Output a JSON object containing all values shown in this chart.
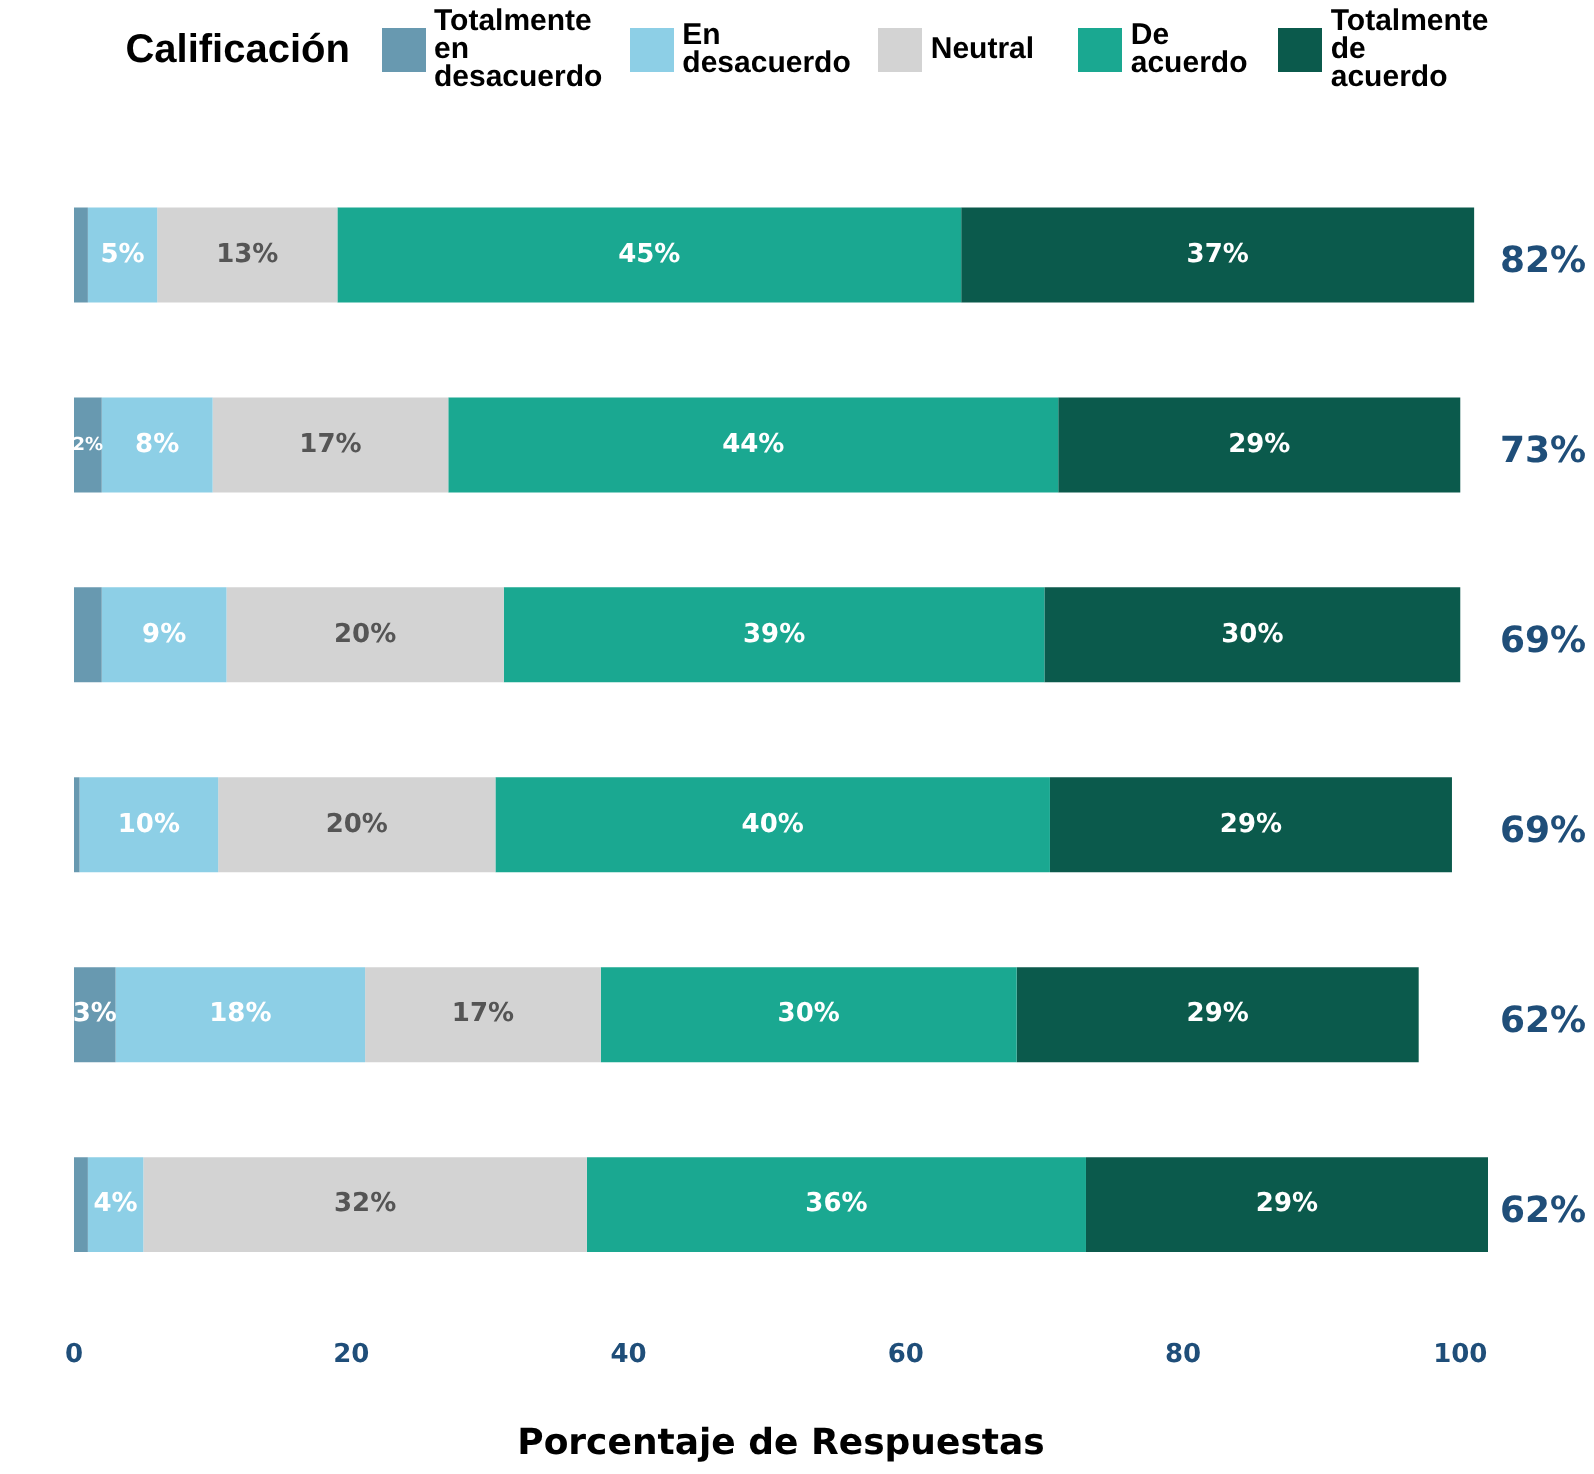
{
  "chart_data": {
    "type": "bar",
    "orientation": "horizontal",
    "stacked": true,
    "legend": "top",
    "legend_title": "Calificación",
    "xlabel": "Porcentaje de Respuestas",
    "categories": [
      null,
      null,
      null,
      null,
      null,
      null
    ],
    "xlim": [
      0,
      102
    ],
    "xticks": [
      0,
      20,
      40,
      60,
      80,
      100
    ],
    "grid": false,
    "series": [
      {
        "name": "Totalmente en desacuerdo",
        "color": "#6899b0",
        "values": [
          1,
          2,
          2,
          0.4,
          3,
          1
        ],
        "value_labels": [
          null,
          "2%",
          null,
          null,
          "3%",
          null
        ]
      },
      {
        "name": "En desacuerdo",
        "color": "#8dcfe6",
        "values": [
          5,
          8,
          9,
          10,
          18,
          4
        ],
        "value_labels": [
          "5%",
          "8%",
          "9%",
          "10%",
          "18%",
          "4%"
        ]
      },
      {
        "name": "Neutral",
        "color": "#d3d3d3",
        "values": [
          13,
          17,
          20,
          20,
          17,
          32
        ],
        "value_labels": [
          "13%",
          "17%",
          "20%",
          "20%",
          "17%",
          "32%"
        ]
      },
      {
        "name": "De acuerdo",
        "color": "#1aa891",
        "values": [
          45,
          44,
          39,
          40,
          30,
          36
        ],
        "value_labels": [
          "45%",
          "44%",
          "39%",
          "40%",
          "30%",
          "36%"
        ]
      },
      {
        "name": "Totalmente de acuerdo",
        "color": "#0b5a4c",
        "values": [
          37,
          29,
          30,
          29,
          29,
          29
        ],
        "value_labels": [
          "37%",
          "29%",
          "30%",
          "29%",
          "29%",
          "29%"
        ]
      }
    ],
    "annotations": [
      "82%",
      "73%",
      "69%",
      "69%",
      "62%",
      "62%"
    ]
  }
}
